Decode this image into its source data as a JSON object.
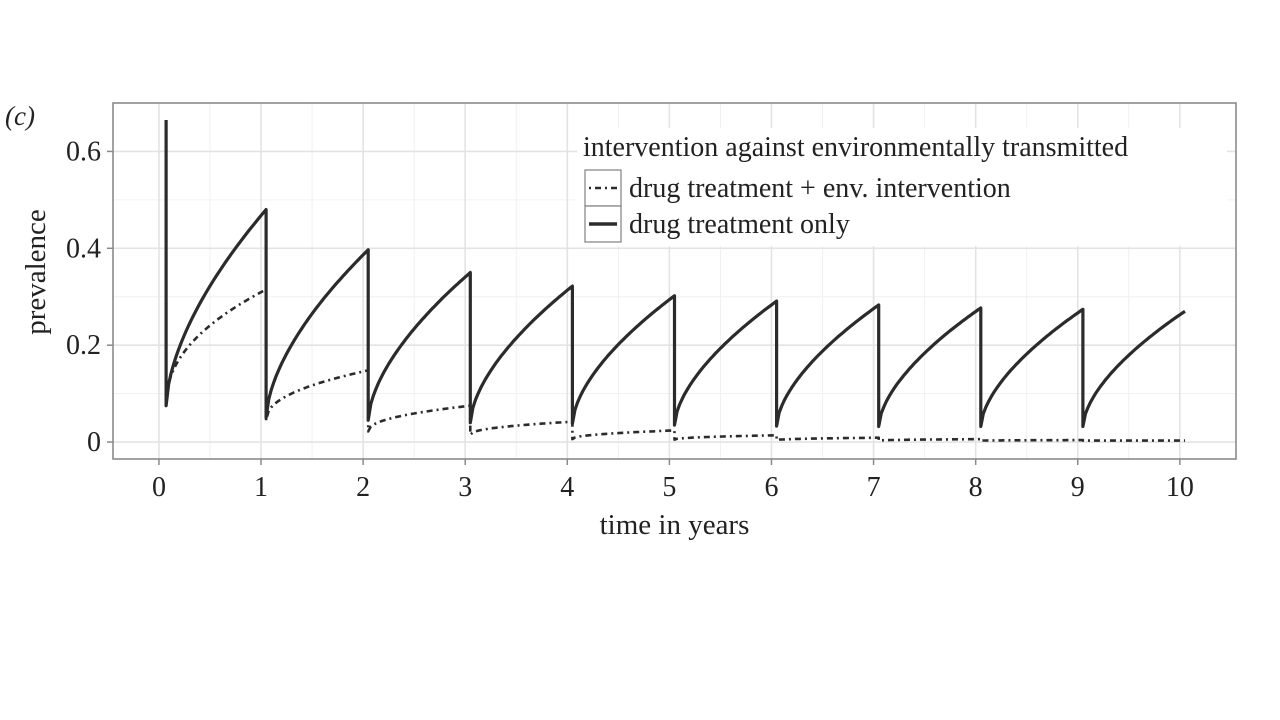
{
  "panel_label": "(c)",
  "chart_data": {
    "type": "line",
    "xlabel": "time in years",
    "ylabel": "prevalence",
    "xlim": [
      -0.45,
      10.55
    ],
    "ylim": [
      -0.035,
      0.7
    ],
    "x_ticks": [
      0,
      1,
      2,
      3,
      4,
      5,
      6,
      7,
      8,
      9,
      10
    ],
    "x_tick_labels": [
      "0",
      "1",
      "2",
      "3",
      "4",
      "5",
      "6",
      "7",
      "8",
      "9",
      "10"
    ],
    "y_ticks": [
      0,
      0.2,
      0.4,
      0.6
    ],
    "y_tick_labels": [
      "0",
      "0.2",
      "0.4",
      "0.6"
    ],
    "grid": true,
    "legend": {
      "title": "intervention against environmentally transmitted",
      "placement": "top-right"
    },
    "series": [
      {
        "name": "drug treatment + env. intervention",
        "style": "dotdash",
        "start_x": 0.07,
        "start_peak": 0.665,
        "cycles": [
          {
            "x0": 0.07,
            "x1": 1.05,
            "y_start": 0.075,
            "y_end": 0.315
          },
          {
            "x0": 1.05,
            "x1": 2.05,
            "y_start": 0.045,
            "y_end": 0.148
          },
          {
            "x0": 2.05,
            "x1": 3.05,
            "y_start": 0.022,
            "y_end": 0.075
          },
          {
            "x0": 3.05,
            "x1": 4.05,
            "y_start": 0.015,
            "y_end": 0.042
          },
          {
            "x0": 4.05,
            "x1": 5.05,
            "y_start": 0.006,
            "y_end": 0.024
          },
          {
            "x0": 5.05,
            "x1": 6.05,
            "y_start": 0.005,
            "y_end": 0.014
          },
          {
            "x0": 6.05,
            "x1": 7.05,
            "y_start": 0.004,
            "y_end": 0.009
          },
          {
            "x0": 7.05,
            "x1": 8.05,
            "y_start": 0.003,
            "y_end": 0.006
          },
          {
            "x0": 8.05,
            "x1": 9.05,
            "y_start": 0.003,
            "y_end": 0.004
          },
          {
            "x0": 9.05,
            "x1": 10.05,
            "y_start": 0.003,
            "y_end": 0.003
          }
        ]
      },
      {
        "name": "drug treatment only",
        "style": "solid",
        "start_x": 0.07,
        "start_peak": 0.665,
        "cycles": [
          {
            "x0": 0.07,
            "x1": 1.05,
            "y_start": 0.075,
            "y_end": 0.48
          },
          {
            "x0": 1.05,
            "x1": 2.05,
            "y_start": 0.05,
            "y_end": 0.397
          },
          {
            "x0": 2.05,
            "x1": 3.05,
            "y_start": 0.045,
            "y_end": 0.35
          },
          {
            "x0": 3.05,
            "x1": 4.05,
            "y_start": 0.04,
            "y_end": 0.322
          },
          {
            "x0": 4.05,
            "x1": 5.05,
            "y_start": 0.038,
            "y_end": 0.302
          },
          {
            "x0": 5.05,
            "x1": 6.05,
            "y_start": 0.035,
            "y_end": 0.291
          },
          {
            "x0": 6.05,
            "x1": 7.05,
            "y_start": 0.033,
            "y_end": 0.283
          },
          {
            "x0": 7.05,
            "x1": 8.05,
            "y_start": 0.032,
            "y_end": 0.277
          },
          {
            "x0": 8.05,
            "x1": 9.05,
            "y_start": 0.032,
            "y_end": 0.274
          },
          {
            "x0": 9.05,
            "x1": 10.05,
            "y_start": 0.032,
            "y_end": 0.27
          }
        ]
      }
    ]
  }
}
